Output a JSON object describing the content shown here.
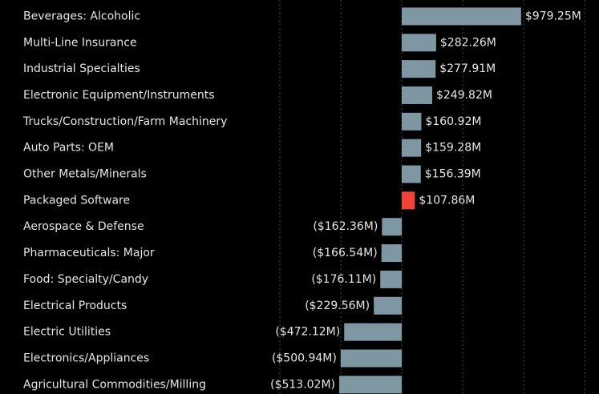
{
  "chart_data": {
    "type": "barh",
    "categories": [
      "Beverages: Alcoholic",
      "Multi-Line Insurance",
      "Industrial Specialties",
      "Electronic Equipment/Instruments",
      "Trucks/Construction/Farm Machinery",
      "Auto Parts: OEM",
      "Other Metals/Minerals",
      "Packaged Software",
      "Aerospace & Defense",
      "Pharmaceuticals: Major",
      "Food: Specialty/Candy",
      "Electrical Products",
      "Electric Utilities",
      "Electronics/Appliances",
      "Agricultural Commodities/Milling"
    ],
    "values": [
      979.25,
      282.26,
      277.91,
      249.82,
      160.92,
      159.28,
      156.39,
      107.86,
      -162.36,
      -166.54,
      -176.11,
      -229.56,
      -472.12,
      -500.94,
      -513.02
    ],
    "value_labels": [
      "$979.25M",
      "$282.26M",
      "$277.91M",
      "$249.82M",
      "$160.92M",
      "$159.28M",
      "$156.39M",
      "$107.86M",
      "($162.36M)",
      "($166.54M)",
      "($176.11M)",
      "($229.56M)",
      "($472.12M)",
      "($500.94M)",
      "($513.02M)"
    ],
    "colors": [
      "#7f96a3",
      "#7f96a3",
      "#7f96a3",
      "#7f96a3",
      "#7f96a3",
      "#7f96a3",
      "#7f96a3",
      "#f0443a",
      "#7f96a3",
      "#7f96a3",
      "#7f96a3",
      "#7f96a3",
      "#7f96a3",
      "#7f96a3",
      "#7f96a3"
    ],
    "xlim": [
      -1000,
      1500
    ],
    "xticks": [
      -1000,
      -500,
      0,
      500,
      1000,
      1500
    ],
    "grid": true
  }
}
